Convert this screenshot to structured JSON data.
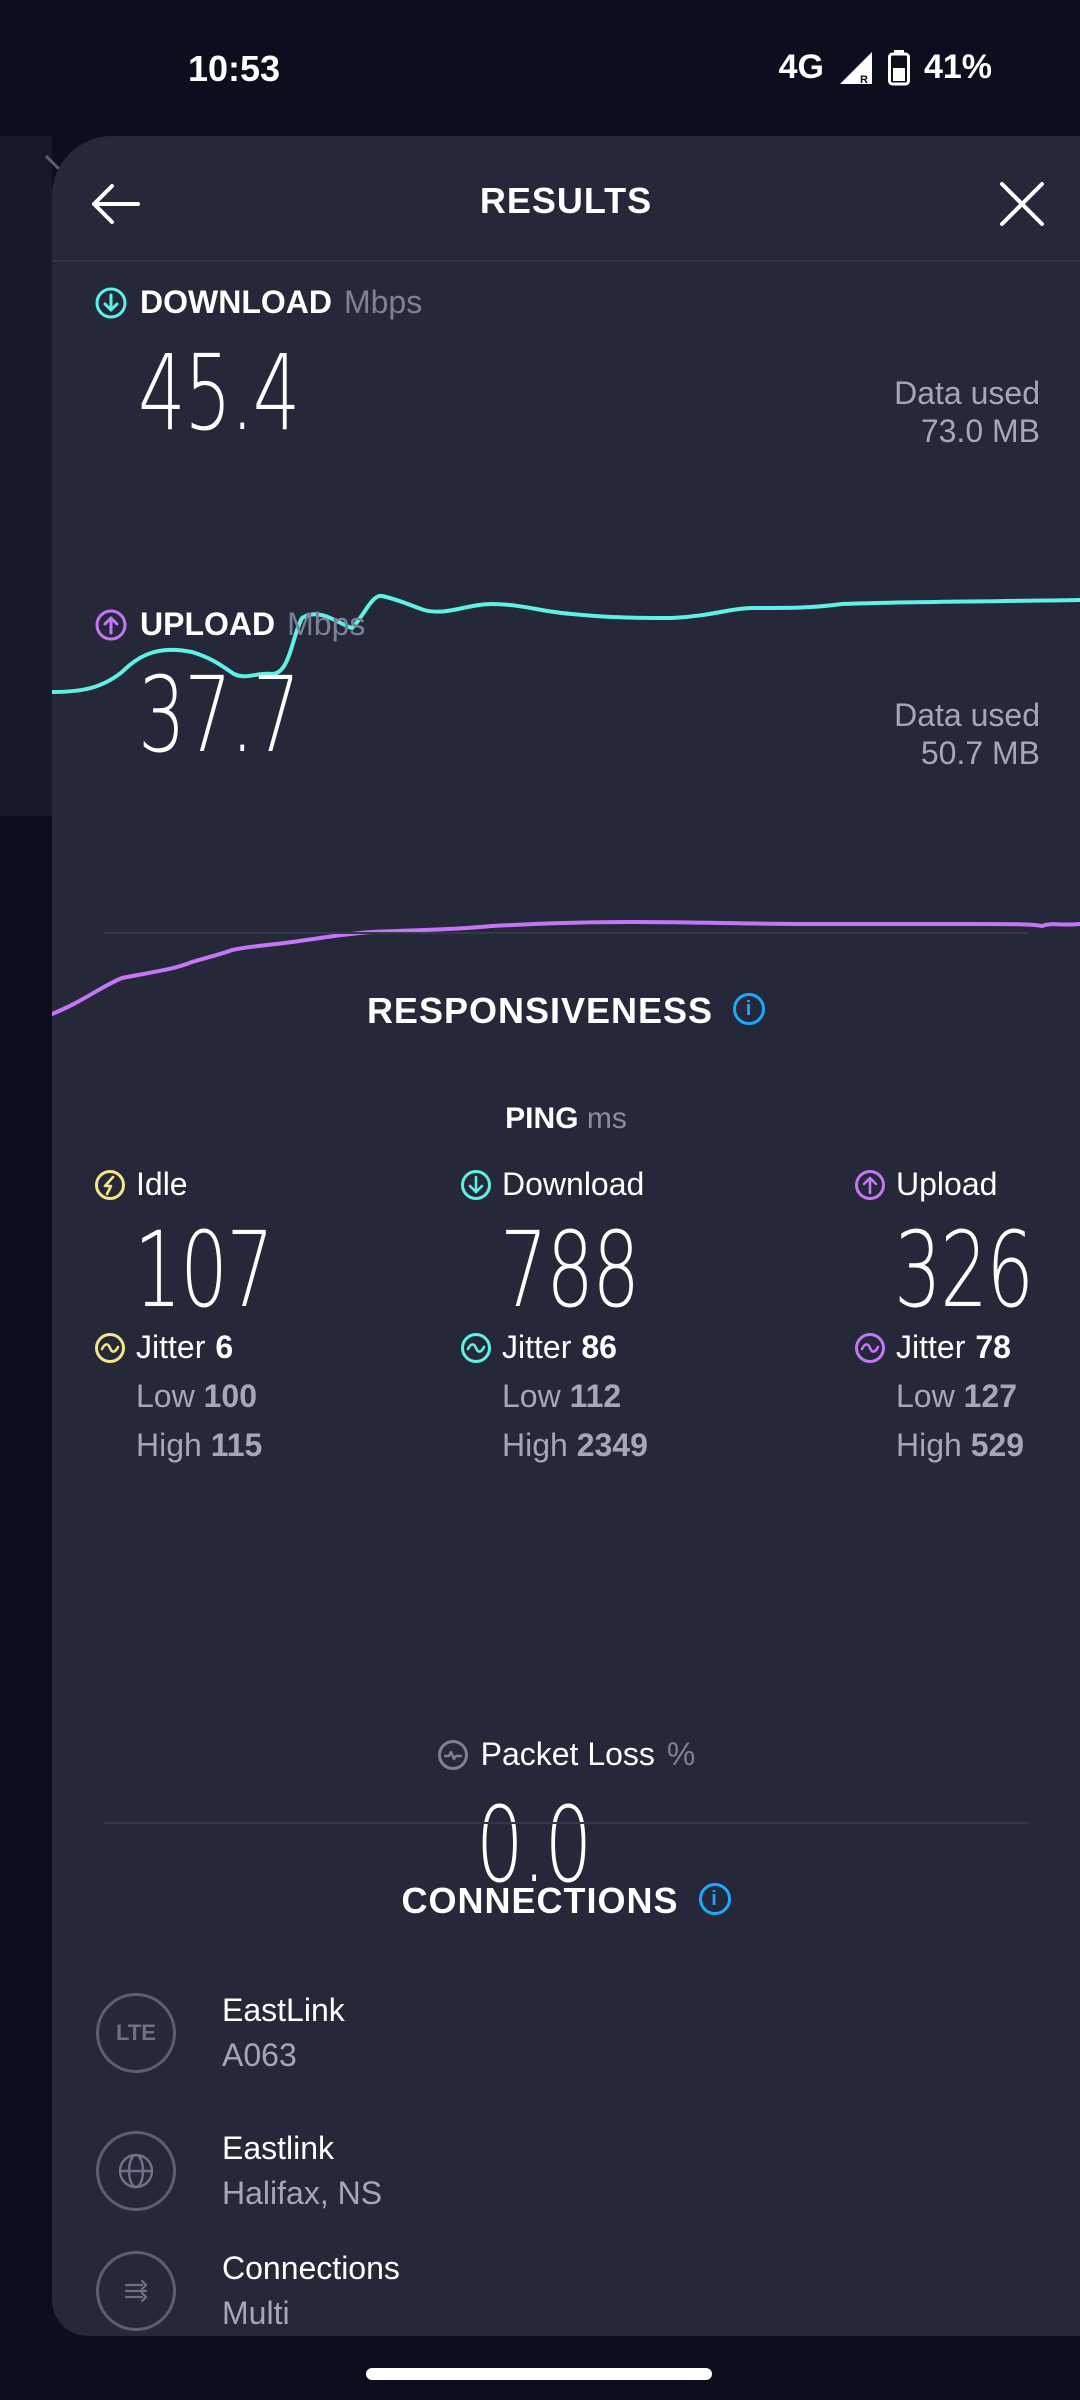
{
  "status_bar": {
    "time": "10:53",
    "network": "4G",
    "battery": "41%"
  },
  "header": {
    "title": "RESULTS"
  },
  "download": {
    "label": "DOWNLOAD",
    "unit": "Mbps",
    "value": "45.4",
    "data_used_label": "Data used",
    "data_used_value": "73.0 MB",
    "color": "#5ff0e6"
  },
  "upload": {
    "label": "UPLOAD",
    "unit": "Mbps",
    "value": "37.7",
    "data_used_label": "Data used",
    "data_used_value": "50.7 MB",
    "color": "#c576f6"
  },
  "responsiveness": {
    "title": "RESPONSIVENESS",
    "ping_label": "PING",
    "ping_unit": "ms",
    "columns": [
      {
        "label": "Idle",
        "value": "107",
        "jitter_label": "Jitter",
        "jitter": "6",
        "low_label": "Low",
        "low": "100",
        "high_label": "High",
        "high": "115",
        "color": "#f3e58a"
      },
      {
        "label": "Download",
        "value": "788",
        "jitter_label": "Jitter",
        "jitter": "86",
        "low_label": "Low",
        "low": "112",
        "high_label": "High",
        "high": "2349",
        "color": "#5ff0e6"
      },
      {
        "label": "Upload",
        "value": "326",
        "jitter_label": "Jitter",
        "jitter": "78",
        "low_label": "Low",
        "low": "127",
        "high_label": "High",
        "high": "529",
        "color": "#c576f6"
      }
    ],
    "packet_loss_label": "Packet Loss",
    "packet_loss_unit": "%",
    "packet_loss_value": "0.0"
  },
  "connections": {
    "title": "CONNECTIONS",
    "items": [
      {
        "icon": "LTE",
        "name": "EastLink",
        "sub": "A063"
      },
      {
        "icon": "globe-icon",
        "name": "Eastlink",
        "sub": "Halifax, NS"
      },
      {
        "icon": "connections-icon",
        "name": "Connections",
        "sub": "Multi"
      }
    ]
  }
}
